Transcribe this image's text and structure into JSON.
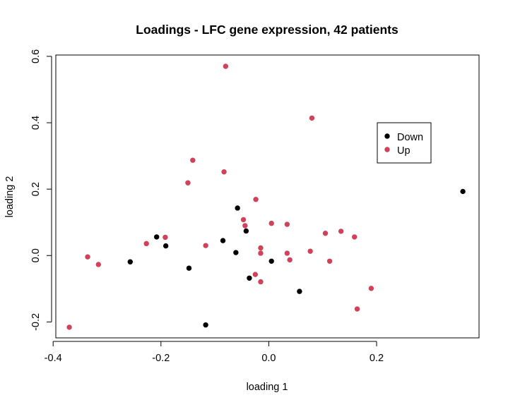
{
  "chart_data": {
    "type": "scatter",
    "title": "Loadings - LFC gene expression, 42 patients",
    "xlabel": "loading 1",
    "ylabel": "loading 2",
    "xlim": [
      -0.395,
      0.39
    ],
    "ylim": [
      -0.248,
      0.604
    ],
    "xticks": [
      -0.4,
      -0.2,
      0.0,
      0.2
    ],
    "xtick_labels": [
      "-0.4",
      "-0.2",
      "0.0",
      "0.2"
    ],
    "yticks": [
      -0.2,
      0.0,
      0.2,
      0.4,
      0.6
    ],
    "ytick_labels": [
      "-0.2",
      "0.0",
      "0.2",
      "0.4",
      "0.6"
    ],
    "legend_position": "upper-right",
    "grid": false,
    "series": [
      {
        "name": "Down",
        "color": "#000000",
        "points": [
          [
            0.36,
            0.193
          ],
          [
            -0.058,
            0.143
          ],
          [
            -0.042,
            0.074
          ],
          [
            -0.208,
            0.056
          ],
          [
            -0.085,
            0.045
          ],
          [
            -0.191,
            0.029
          ],
          [
            -0.061,
            0.009
          ],
          [
            -0.257,
            -0.019
          ],
          [
            0.005,
            -0.017
          ],
          [
            -0.148,
            -0.038
          ],
          [
            -0.036,
            -0.068
          ],
          [
            0.057,
            -0.108
          ],
          [
            -0.117,
            -0.209
          ]
        ]
      },
      {
        "name": "Up",
        "color": "#d1415a",
        "points": [
          [
            -0.08,
            0.57
          ],
          [
            0.08,
            0.414
          ],
          [
            -0.141,
            0.287
          ],
          [
            -0.083,
            0.252
          ],
          [
            -0.15,
            0.219
          ],
          [
            -0.024,
            0.169
          ],
          [
            -0.047,
            0.108
          ],
          [
            -0.044,
            0.09
          ],
          [
            0.005,
            0.097
          ],
          [
            0.034,
            0.094
          ],
          [
            0.105,
            0.067
          ],
          [
            0.134,
            0.073
          ],
          [
            0.159,
            0.056
          ],
          [
            -0.192,
            0.055
          ],
          [
            -0.227,
            0.036
          ],
          [
            -0.117,
            0.03
          ],
          [
            -0.015,
            0.023
          ],
          [
            -0.015,
            0.007
          ],
          [
            0.034,
            0.007
          ],
          [
            0.077,
            0.013
          ],
          [
            -0.336,
            -0.004
          ],
          [
            0.039,
            -0.013
          ],
          [
            0.113,
            -0.017
          ],
          [
            -0.316,
            -0.027
          ],
          [
            -0.025,
            -0.057
          ],
          [
            -0.015,
            -0.079
          ],
          [
            0.19,
            -0.099
          ],
          [
            0.164,
            -0.161
          ],
          [
            -0.37,
            -0.216
          ]
        ]
      }
    ]
  }
}
